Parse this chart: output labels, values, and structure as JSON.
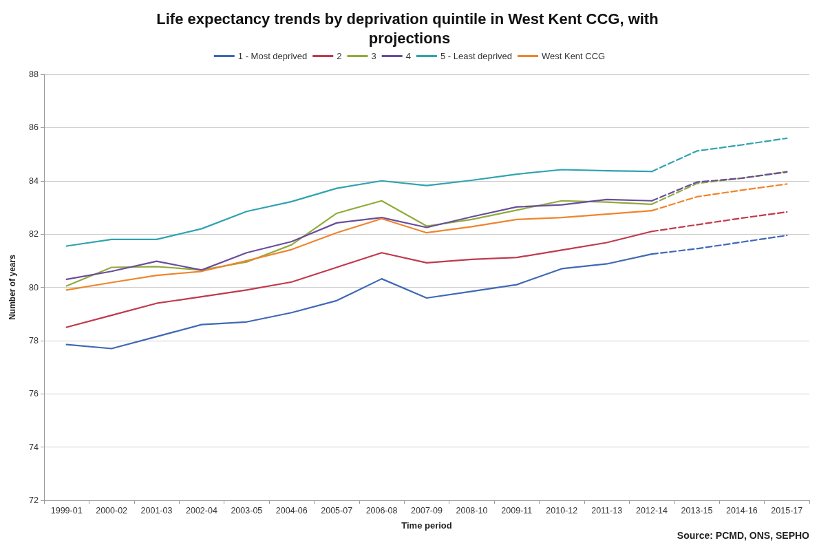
{
  "chart_data": {
    "type": "line",
    "title": "Life expectancy trends by deprivation quintile in West Kent CCG, with projections",
    "xlabel": "Time period",
    "ylabel": "Number of years",
    "categories": [
      "1999-01",
      "2000-02",
      "2001-03",
      "2002-04",
      "2003-05",
      "2004-06",
      "2005-07",
      "2006-08",
      "2007-09",
      "2008-10",
      "2009-11",
      "2010-12",
      "2011-13",
      "2012-14",
      "2013-15",
      "2014-16",
      "2015-17"
    ],
    "ylim": [
      72,
      88
    ],
    "yticks": [
      72,
      74,
      76,
      78,
      80,
      82,
      84,
      86,
      88
    ],
    "grid": "y",
    "legend": "top",
    "marker": "none",
    "line_style": "solid",
    "series": [
      {
        "name": "1 - Most deprived",
        "color": "#3f68b5",
        "values": [
          77.85,
          77.7,
          78.15,
          78.6,
          78.7,
          79.05,
          79.5,
          80.32,
          79.6,
          79.85,
          80.1,
          80.7,
          80.88,
          81.25,
          null,
          null,
          null
        ]
      },
      {
        "name": "2",
        "color": "#c0394b",
        "values": [
          78.5,
          78.95,
          79.4,
          79.65,
          79.9,
          80.2,
          80.75,
          81.3,
          80.92,
          81.05,
          81.12,
          81.4,
          81.68,
          82.1,
          null,
          null,
          null
        ]
      },
      {
        "name": "3",
        "color": "#8fac3c",
        "values": [
          80.05,
          80.75,
          80.78,
          80.65,
          80.95,
          81.6,
          82.78,
          83.25,
          82.3,
          82.55,
          82.9,
          83.25,
          83.2,
          83.12,
          null,
          null,
          null
        ]
      },
      {
        "name": "4",
        "color": "#6a4c9c",
        "values": [
          80.3,
          80.6,
          80.98,
          80.65,
          81.3,
          81.72,
          82.42,
          82.62,
          82.25,
          82.65,
          83.02,
          83.1,
          83.3,
          83.25,
          null,
          null,
          null
        ]
      },
      {
        "name": "5 - Least deprived",
        "color": "#2fa3b0",
        "values": [
          81.55,
          81.8,
          81.8,
          82.2,
          82.85,
          83.22,
          83.72,
          84.0,
          83.82,
          84.02,
          84.25,
          84.42,
          84.38,
          84.35,
          null,
          null,
          null
        ]
      },
      {
        "name": "West Kent CCG",
        "color": "#f0842c",
        "values": [
          79.9,
          80.18,
          80.45,
          80.6,
          81.0,
          81.42,
          82.05,
          82.58,
          82.05,
          82.28,
          82.55,
          82.62,
          82.75,
          82.88,
          null,
          null,
          null
        ]
      },
      {
        "color": "#3f68b5",
        "line_style": "dashed",
        "values": [
          null,
          null,
          null,
          null,
          null,
          null,
          null,
          null,
          null,
          null,
          null,
          null,
          null,
          81.25,
          81.45,
          81.7,
          81.95
        ]
      },
      {
        "color": "#c0394b",
        "line_style": "dashed",
        "values": [
          null,
          null,
          null,
          null,
          null,
          null,
          null,
          null,
          null,
          null,
          null,
          null,
          null,
          82.1,
          82.35,
          82.6,
          82.83
        ]
      },
      {
        "color": "#8fac3c",
        "line_style": "dashed",
        "values": [
          null,
          null,
          null,
          null,
          null,
          null,
          null,
          null,
          null,
          null,
          null,
          null,
          null,
          83.12,
          83.9,
          84.1,
          84.35
        ]
      },
      {
        "color": "#6a4c9c",
        "line_style": "dashed",
        "values": [
          null,
          null,
          null,
          null,
          null,
          null,
          null,
          null,
          null,
          null,
          null,
          null,
          null,
          83.25,
          83.95,
          84.1,
          84.33
        ]
      },
      {
        "color": "#2fa3b0",
        "line_style": "dashed",
        "values": [
          null,
          null,
          null,
          null,
          null,
          null,
          null,
          null,
          null,
          null,
          null,
          null,
          null,
          84.35,
          85.12,
          85.35,
          85.6
        ]
      },
      {
        "color": "#f0842c",
        "line_style": "dashed",
        "values": [
          null,
          null,
          null,
          null,
          null,
          null,
          null,
          null,
          null,
          null,
          null,
          null,
          null,
          82.88,
          83.4,
          83.65,
          83.88
        ]
      }
    ],
    "annotations": [
      "Source: PCMD, ONS, SEPHO"
    ]
  }
}
